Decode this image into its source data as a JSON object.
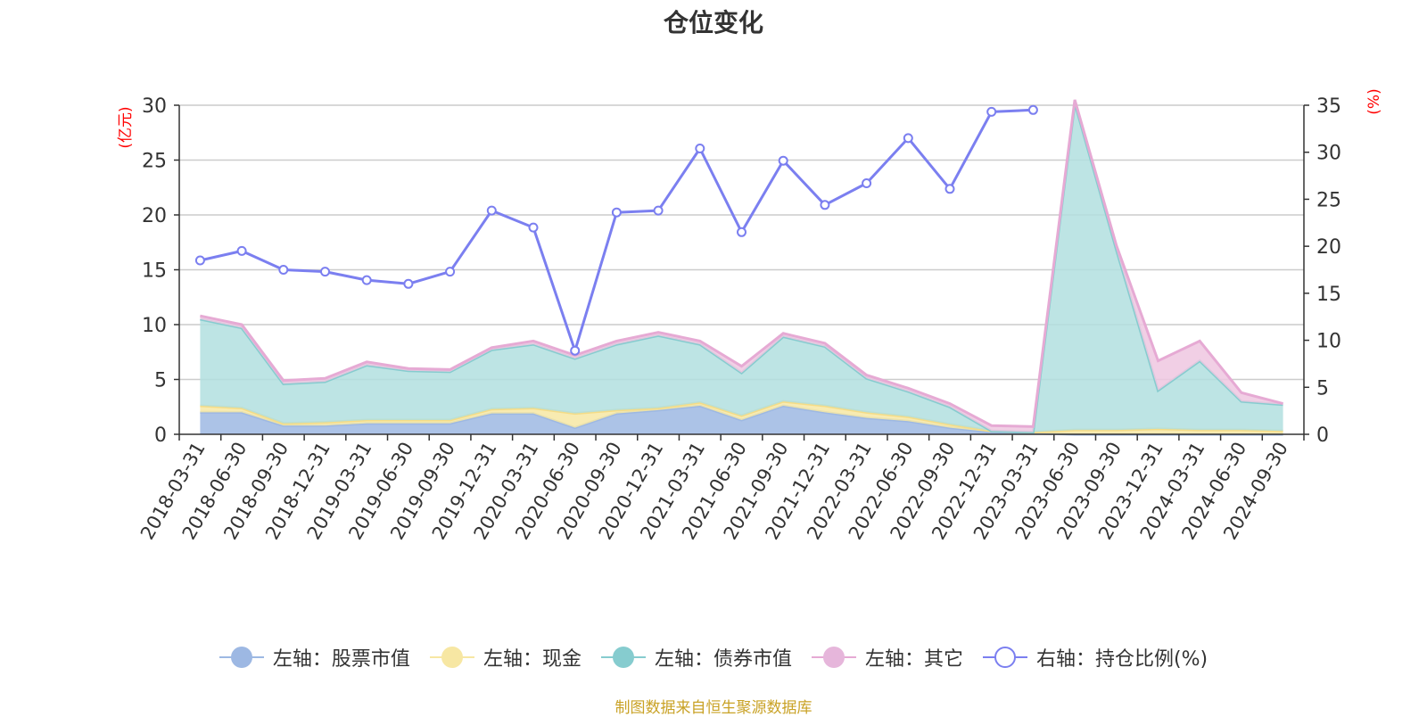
{
  "chart_data": {
    "type": "area",
    "title": "仓位变化",
    "left_axis": {
      "unit_label": "(亿元)",
      "ylim": [
        0,
        30
      ],
      "ticks": [
        0,
        5,
        10,
        15,
        20,
        25,
        30
      ]
    },
    "right_axis": {
      "unit_label": "(%)",
      "ylim": [
        0,
        35
      ],
      "ticks": [
        0,
        5,
        10,
        15,
        20,
        25,
        30,
        35
      ]
    },
    "categories": [
      "2018-03-31",
      "2018-06-30",
      "2018-09-30",
      "2018-12-31",
      "2019-03-31",
      "2019-06-30",
      "2019-09-30",
      "2019-12-31",
      "2020-03-31",
      "2020-06-30",
      "2020-09-30",
      "2020-12-31",
      "2021-03-31",
      "2021-06-30",
      "2021-09-30",
      "2021-12-31",
      "2022-03-31",
      "2022-06-30",
      "2022-09-30",
      "2022-12-31",
      "2023-03-31",
      "2023-06-30",
      "2023-09-30",
      "2023-12-31",
      "2024-03-31",
      "2024-06-30",
      "2024-09-30"
    ],
    "series": [
      {
        "name": "左轴：股票市值",
        "axis": "left",
        "kind": "stacked-area",
        "color": "#9db8e3",
        "values": [
          2.0,
          2.0,
          0.8,
          0.8,
          1.0,
          1.0,
          1.0,
          1.9,
          1.9,
          0.6,
          1.9,
          2.2,
          2.6,
          1.3,
          2.6,
          2.0,
          1.5,
          1.2,
          0.6,
          0.2,
          0.1,
          0.0,
          0.0,
          0.0,
          0.0,
          0.0,
          0.0
        ]
      },
      {
        "name": "左轴：现金",
        "axis": "left",
        "kind": "stacked-area",
        "color": "#f7e7a3",
        "values": [
          0.6,
          0.4,
          0.2,
          0.3,
          0.3,
          0.3,
          0.3,
          0.4,
          0.5,
          1.3,
          0.3,
          0.2,
          0.3,
          0.4,
          0.4,
          0.6,
          0.5,
          0.4,
          0.3,
          0.1,
          0.1,
          0.4,
          0.4,
          0.5,
          0.4,
          0.4,
          0.3
        ]
      },
      {
        "name": "左轴：债券市值",
        "axis": "left",
        "kind": "stacked-area",
        "color": "#b2dfdf",
        "values": [
          7.9,
          7.3,
          3.6,
          3.7,
          5.0,
          4.5,
          4.4,
          5.4,
          5.8,
          5.0,
          6.0,
          6.6,
          5.3,
          3.9,
          5.9,
          5.4,
          3.1,
          2.3,
          1.6,
          0.0,
          0.0,
          29.8,
          16.4,
          3.5,
          6.3,
          2.6,
          2.4
        ]
      },
      {
        "name": "左轴：其它",
        "axis": "left",
        "kind": "stacked-area",
        "color": "#eec7e0",
        "values": [
          0.3,
          0.3,
          0.3,
          0.3,
          0.3,
          0.2,
          0.2,
          0.2,
          0.3,
          0.3,
          0.3,
          0.3,
          0.3,
          0.6,
          0.3,
          0.3,
          0.3,
          0.3,
          0.3,
          0.5,
          0.5,
          0.3,
          0.4,
          2.7,
          1.8,
          0.8,
          0.1
        ]
      },
      {
        "name": "右轴：持仓比例(%)",
        "axis": "right",
        "kind": "line",
        "color": "#7b7ff0",
        "values": [
          18.5,
          19.5,
          17.5,
          17.3,
          16.4,
          16.0,
          17.3,
          23.8,
          22.0,
          8.9,
          23.6,
          23.8,
          30.4,
          21.5,
          29.1,
          24.4,
          26.7,
          31.5,
          26.1,
          34.3,
          34.5,
          null,
          null,
          null,
          null,
          null,
          null
        ]
      }
    ],
    "grid": true,
    "legend_position": "bottom-center"
  },
  "footer": {
    "source": "制图数据来自恒生聚源数据库"
  },
  "colors": {
    "axis_unit": "#ff0000",
    "grid": "#cccccc",
    "text": "#333333",
    "source_text": "#c9a226",
    "area_edge_stock": "#9db8e3",
    "area_edge_cash": "#f5dc86",
    "area_edge_bond": "#86cccf",
    "area_edge_other": "#e6aad4"
  }
}
